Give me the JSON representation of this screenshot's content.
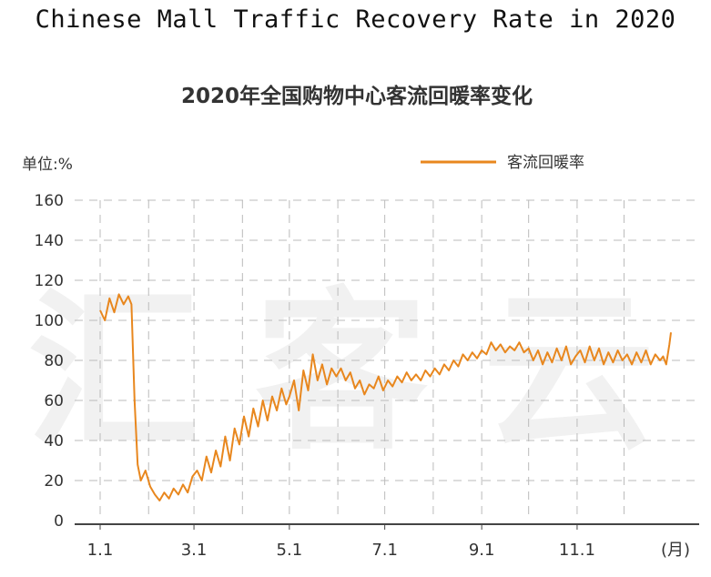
{
  "page_title": "Chinese Mall Traffic Recovery Rate in 2020",
  "chart_data": {
    "type": "line",
    "title": "2020年全国购物中心客流回暖率变化",
    "unit_label": "单位:%",
    "x_unit": "(月)",
    "x_ticks": [
      "1.1",
      "3.1",
      "5.1",
      "7.1",
      "9.1",
      "11.1"
    ],
    "y_ticks": [
      0,
      20,
      40,
      60,
      80,
      100,
      120,
      140,
      160
    ],
    "ylim": [
      0,
      160
    ],
    "grid": true,
    "legend_position": "top-right",
    "watermark": "汇客云",
    "colors": {
      "line": "#e8871e",
      "grid": "#bbbbbb",
      "watermark": "#f1f1f1"
    },
    "series": [
      {
        "name": "客流回暖率",
        "x": [
          "2020-01-01",
          "2020-01-04",
          "2020-01-07",
          "2020-01-10",
          "2020-01-13",
          "2020-01-16",
          "2020-01-19",
          "2020-01-21",
          "2020-01-23",
          "2020-01-25",
          "2020-01-27",
          "2020-01-30",
          "2020-02-02",
          "2020-02-05",
          "2020-02-08",
          "2020-02-11",
          "2020-02-14",
          "2020-02-17",
          "2020-02-20",
          "2020-02-23",
          "2020-02-26",
          "2020-02-29",
          "2020-03-03",
          "2020-03-06",
          "2020-03-09",
          "2020-03-12",
          "2020-03-15",
          "2020-03-18",
          "2020-03-21",
          "2020-03-24",
          "2020-03-27",
          "2020-03-30",
          "2020-04-02",
          "2020-04-05",
          "2020-04-08",
          "2020-04-11",
          "2020-04-14",
          "2020-04-17",
          "2020-04-20",
          "2020-04-23",
          "2020-04-26",
          "2020-04-29",
          "2020-05-01",
          "2020-05-04",
          "2020-05-07",
          "2020-05-10",
          "2020-05-13",
          "2020-05-16",
          "2020-05-19",
          "2020-05-22",
          "2020-05-25",
          "2020-05-28",
          "2020-05-31",
          "2020-06-03",
          "2020-06-06",
          "2020-06-09",
          "2020-06-12",
          "2020-06-15",
          "2020-06-18",
          "2020-06-21",
          "2020-06-24",
          "2020-06-27",
          "2020-06-30",
          "2020-07-03",
          "2020-07-06",
          "2020-07-09",
          "2020-07-12",
          "2020-07-15",
          "2020-07-18",
          "2020-07-21",
          "2020-07-24",
          "2020-07-27",
          "2020-07-30",
          "2020-08-02",
          "2020-08-05",
          "2020-08-08",
          "2020-08-11",
          "2020-08-14",
          "2020-08-17",
          "2020-08-20",
          "2020-08-23",
          "2020-08-26",
          "2020-08-29",
          "2020-09-01",
          "2020-09-04",
          "2020-09-07",
          "2020-09-10",
          "2020-09-13",
          "2020-09-16",
          "2020-09-19",
          "2020-09-22",
          "2020-09-25",
          "2020-09-28",
          "2020-10-01",
          "2020-10-04",
          "2020-10-07",
          "2020-10-10",
          "2020-10-13",
          "2020-10-16",
          "2020-10-19",
          "2020-10-22",
          "2020-10-25",
          "2020-10-28",
          "2020-10-31",
          "2020-11-03",
          "2020-11-06",
          "2020-11-09",
          "2020-11-12",
          "2020-11-15",
          "2020-11-18",
          "2020-11-21",
          "2020-11-24",
          "2020-11-27",
          "2020-11-30",
          "2020-12-03",
          "2020-12-06",
          "2020-12-09",
          "2020-12-12",
          "2020-12-15",
          "2020-12-18",
          "2020-12-21",
          "2020-12-24",
          "2020-12-26",
          "2020-12-28",
          "2020-12-30",
          "2020-12-31"
        ],
        "values": [
          105,
          100,
          111,
          104,
          113,
          108,
          112,
          108,
          60,
          28,
          20,
          25,
          17,
          13,
          10,
          14,
          11,
          16,
          13,
          18,
          14,
          22,
          25,
          20,
          32,
          24,
          35,
          27,
          42,
          30,
          46,
          38,
          52,
          42,
          56,
          47,
          60,
          50,
          62,
          55,
          66,
          58,
          62,
          70,
          55,
          75,
          65,
          83,
          70,
          78,
          68,
          76,
          72,
          76,
          70,
          74,
          66,
          70,
          63,
          68,
          66,
          72,
          65,
          70,
          67,
          72,
          69,
          74,
          70,
          73,
          70,
          75,
          72,
          76,
          73,
          78,
          75,
          80,
          77,
          83,
          80,
          84,
          81,
          85,
          83,
          89,
          85,
          88,
          84,
          87,
          85,
          89,
          84,
          86,
          80,
          85,
          78,
          84,
          79,
          86,
          80,
          87,
          78,
          82,
          85,
          79,
          87,
          80,
          86,
          78,
          84,
          79,
          85,
          80,
          83,
          78,
          84,
          79,
          85,
          78,
          83,
          80,
          82,
          78,
          88,
          94
        ]
      }
    ]
  }
}
